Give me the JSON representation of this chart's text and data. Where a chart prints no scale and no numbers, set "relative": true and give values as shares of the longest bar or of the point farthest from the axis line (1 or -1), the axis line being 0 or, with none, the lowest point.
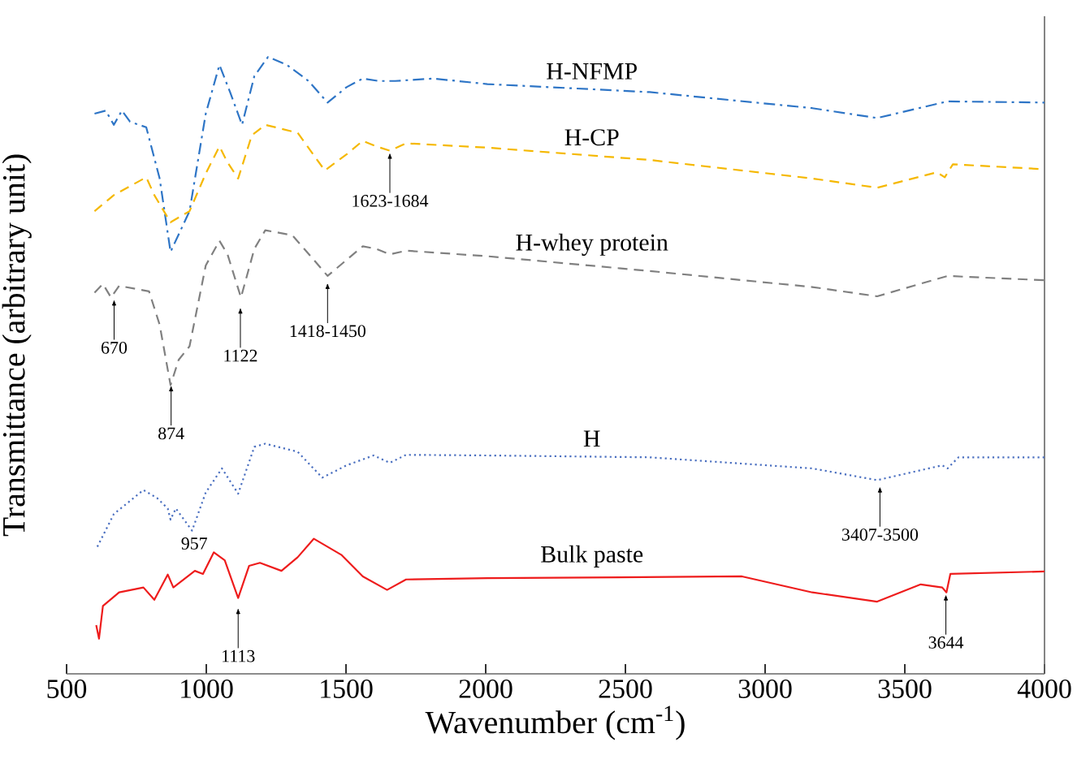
{
  "chart_data": {
    "type": "line",
    "relative": true,
    "xlabel": "Wavenumber (cm$^{-1}$)",
    "ylabel": "Transmittance (arbitrary unit)",
    "xlim": [
      500,
      4000
    ],
    "xticks": [
      500,
      1000,
      1500,
      2000,
      2500,
      3000,
      3500,
      4000
    ],
    "grid": false,
    "legend": false,
    "marker": "none",
    "series": [
      {
        "name": "H-NFMP",
        "color": "#2e75c6",
        "line_style": "dashdot",
        "x": [
          600,
          640,
          669,
          698,
          727,
          785,
          833,
          872,
          940,
          998,
          1047,
          1085,
          1128,
          1172,
          1221,
          1289,
          1366,
          1434,
          1502,
          1560,
          1618,
          1676,
          1812,
          2006,
          2587,
          3169,
          3401,
          3653,
          4000
        ],
        "values": [
          0.908,
          0.913,
          0.89,
          0.913,
          0.895,
          0.886,
          0.803,
          0.684,
          0.75,
          0.908,
          0.987,
          0.943,
          0.89,
          0.969,
          1.0,
          0.987,
          0.961,
          0.926,
          0.951,
          0.965,
          0.961,
          0.961,
          0.965,
          0.956,
          0.943,
          0.917,
          0.901,
          0.928,
          0.926
        ]
      },
      {
        "name": "H-CP",
        "color": "#f5b800",
        "line_style": "dashed",
        "x": [
          600,
          669,
          785,
          814,
          872,
          940,
          998,
          1047,
          1076,
          1114,
          1163,
          1211,
          1327,
          1424,
          1502,
          1560,
          1608,
          1657,
          1715,
          2006,
          2587,
          3169,
          3401,
          3615,
          3643,
          3672,
          4000
        ],
        "values": [
          0.75,
          0.776,
          0.805,
          0.776,
          0.732,
          0.75,
          0.811,
          0.855,
          0.829,
          0.803,
          0.873,
          0.89,
          0.877,
          0.816,
          0.842,
          0.864,
          0.855,
          0.848,
          0.86,
          0.853,
          0.833,
          0.803,
          0.788,
          0.813,
          0.805,
          0.826,
          0.818
        ]
      },
      {
        "name": "H-whey protein",
        "color": "#808080",
        "line_style": "dashed",
        "x": [
          600,
          630,
          659,
          688,
          795,
          833,
          872,
          901,
          940,
          998,
          1047,
          1076,
          1124,
          1172,
          1211,
          1308,
          1385,
          1434,
          1502,
          1560,
          1608,
          1657,
          1715,
          2006,
          2587,
          3169,
          3401,
          3653,
          4000
        ],
        "values": [
          0.618,
          0.632,
          0.61,
          0.629,
          0.62,
          0.566,
          0.468,
          0.509,
          0.531,
          0.662,
          0.702,
          0.68,
          0.61,
          0.689,
          0.719,
          0.711,
          0.671,
          0.645,
          0.671,
          0.693,
          0.689,
          0.68,
          0.686,
          0.677,
          0.653,
          0.627,
          0.612,
          0.645,
          0.638
        ]
      },
      {
        "name": "H",
        "color": "#4a6fc0",
        "line_style": "dotted",
        "x": [
          610,
          669,
          775,
          824,
          862,
          872,
          891,
          949,
          998,
          1056,
          1114,
          1172,
          1211,
          1327,
          1415,
          1502,
          1599,
          1657,
          1715,
          2006,
          2587,
          3169,
          3401,
          3634,
          3653,
          3692,
          4000
        ],
        "values": [
          0.206,
          0.259,
          0.298,
          0.285,
          0.268,
          0.25,
          0.268,
          0.232,
          0.294,
          0.333,
          0.292,
          0.368,
          0.373,
          0.36,
          0.318,
          0.338,
          0.354,
          0.342,
          0.355,
          0.354,
          0.351,
          0.333,
          0.314,
          0.338,
          0.333,
          0.351,
          0.351
        ]
      },
      {
        "name": "Bulk paste",
        "color": "#ee1c1c",
        "line_style": "solid",
        "x": [
          606,
          616,
          630,
          688,
          775,
          814,
          862,
          882,
          959,
          988,
          1027,
          1066,
          1114,
          1153,
          1192,
          1269,
          1327,
          1385,
          1483,
          1560,
          1647,
          1715,
          2006,
          2917,
          3169,
          3401,
          3557,
          3634,
          3649,
          3663,
          4000
        ],
        "values": [
          0.079,
          0.057,
          0.11,
          0.132,
          0.14,
          0.12,
          0.161,
          0.14,
          0.167,
          0.162,
          0.197,
          0.184,
          0.123,
          0.175,
          0.18,
          0.167,
          0.189,
          0.219,
          0.193,
          0.158,
          0.136,
          0.153,
          0.155,
          0.158,
          0.132,
          0.117,
          0.145,
          0.14,
          0.132,
          0.162,
          0.166
        ]
      }
    ],
    "annotations": [
      {
        "text": "670",
        "x": 670,
        "y": 0.61
      },
      {
        "text": "874",
        "x": 874,
        "y": 0.471
      },
      {
        "text": "1122",
        "x": 1122,
        "y": 0.597
      },
      {
        "text": "1418-1450",
        "x": 1434,
        "y": 0.637
      },
      {
        "text": "1623-1684",
        "x": 1657,
        "y": 0.848
      },
      {
        "text": "957",
        "x": 957,
        "y": 0.232
      },
      {
        "text": "3407-3500",
        "x": 3411,
        "y": 0.307
      },
      {
        "text": "1113",
        "x": 1114,
        "y": 0.11
      },
      {
        "text": "3644",
        "x": 3647,
        "y": 0.132
      }
    ]
  }
}
